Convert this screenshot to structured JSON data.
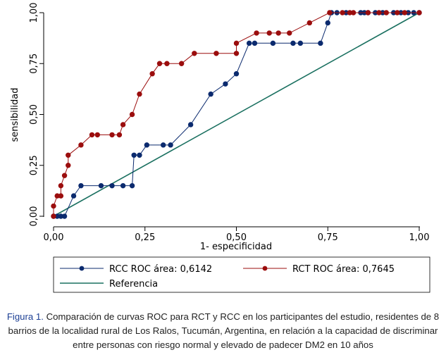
{
  "chart_data": {
    "type": "line",
    "xlabel": "1- especificidad",
    "ylabel": "sensibilidad",
    "xlim": [
      0,
      1
    ],
    "ylim": [
      0,
      1
    ],
    "x_ticks": [
      "0,00",
      "0,25",
      "0,50",
      "0,75",
      "1,00"
    ],
    "y_ticks": [
      "0,00",
      "0,25",
      "0,50",
      "0,75",
      "1,00"
    ],
    "grid": false,
    "legend": "bottom",
    "series": [
      {
        "name": "RCC ROC área: 0,6142",
        "color": "#0b2a6e",
        "marker": "circle",
        "points": [
          [
            0,
            0
          ],
          [
            0.01,
            0
          ],
          [
            0.02,
            0
          ],
          [
            0.03,
            0
          ],
          [
            0.055,
            0.1
          ],
          [
            0.075,
            0.15
          ],
          [
            0.13,
            0.15
          ],
          [
            0.16,
            0.15
          ],
          [
            0.19,
            0.15
          ],
          [
            0.215,
            0.15
          ],
          [
            0.22,
            0.3
          ],
          [
            0.235,
            0.3
          ],
          [
            0.255,
            0.35
          ],
          [
            0.3,
            0.35
          ],
          [
            0.32,
            0.35
          ],
          [
            0.375,
            0.45
          ],
          [
            0.43,
            0.6
          ],
          [
            0.47,
            0.65
          ],
          [
            0.5,
            0.7
          ],
          [
            0.535,
            0.85
          ],
          [
            0.55,
            0.85
          ],
          [
            0.6,
            0.85
          ],
          [
            0.655,
            0.85
          ],
          [
            0.675,
            0.85
          ],
          [
            0.73,
            0.85
          ],
          [
            0.75,
            0.95
          ],
          [
            0.76,
            1
          ],
          [
            0.775,
            1
          ],
          [
            0.8,
            1
          ],
          [
            0.84,
            1
          ],
          [
            0.85,
            1
          ],
          [
            0.86,
            1
          ],
          [
            0.88,
            1
          ],
          [
            0.9,
            1
          ],
          [
            0.93,
            1
          ],
          [
            0.95,
            1
          ],
          [
            0.97,
            1
          ],
          [
            0.985,
            1
          ],
          [
            1,
            1
          ]
        ]
      },
      {
        "name": "RCT ROC área: 0,7645",
        "color": "#9b0d0d",
        "marker": "circle",
        "points": [
          [
            0,
            0
          ],
          [
            0,
            0.05
          ],
          [
            0.01,
            0.1
          ],
          [
            0.02,
            0.1
          ],
          [
            0.02,
            0.15
          ],
          [
            0.03,
            0.2
          ],
          [
            0.04,
            0.25
          ],
          [
            0.04,
            0.3
          ],
          [
            0.075,
            0.35
          ],
          [
            0.105,
            0.4
          ],
          [
            0.12,
            0.4
          ],
          [
            0.16,
            0.4
          ],
          [
            0.18,
            0.4
          ],
          [
            0.19,
            0.45
          ],
          [
            0.215,
            0.5
          ],
          [
            0.235,
            0.6
          ],
          [
            0.27,
            0.7
          ],
          [
            0.29,
            0.75
          ],
          [
            0.31,
            0.75
          ],
          [
            0.35,
            0.75
          ],
          [
            0.385,
            0.8
          ],
          [
            0.445,
            0.8
          ],
          [
            0.5,
            0.8
          ],
          [
            0.5,
            0.85
          ],
          [
            0.555,
            0.9
          ],
          [
            0.59,
            0.9
          ],
          [
            0.615,
            0.9
          ],
          [
            0.645,
            0.9
          ],
          [
            0.7,
            0.95
          ],
          [
            0.755,
            1
          ],
          [
            0.79,
            1
          ],
          [
            0.81,
            1
          ],
          [
            0.82,
            1
          ],
          [
            0.86,
            1
          ],
          [
            0.89,
            1
          ],
          [
            0.91,
            1
          ],
          [
            0.94,
            1
          ],
          [
            0.96,
            1
          ],
          [
            1,
            1
          ]
        ]
      },
      {
        "name": "Referencia",
        "color": "#1a7060",
        "marker": "none",
        "points": [
          [
            0,
            0
          ],
          [
            1,
            1
          ]
        ]
      }
    ]
  },
  "caption": {
    "label": "Figura 1.",
    "text": " Comparación de curvas ROC para RCT y RCC en los participantes del estudio, residentes de 8 barrios de la localidad rural de Los Ralos, Tucumán, Argentina, en relación a la capacidad de discriminar entre personas con riesgo normal y elevado de padecer DM2 en 10 años"
  }
}
